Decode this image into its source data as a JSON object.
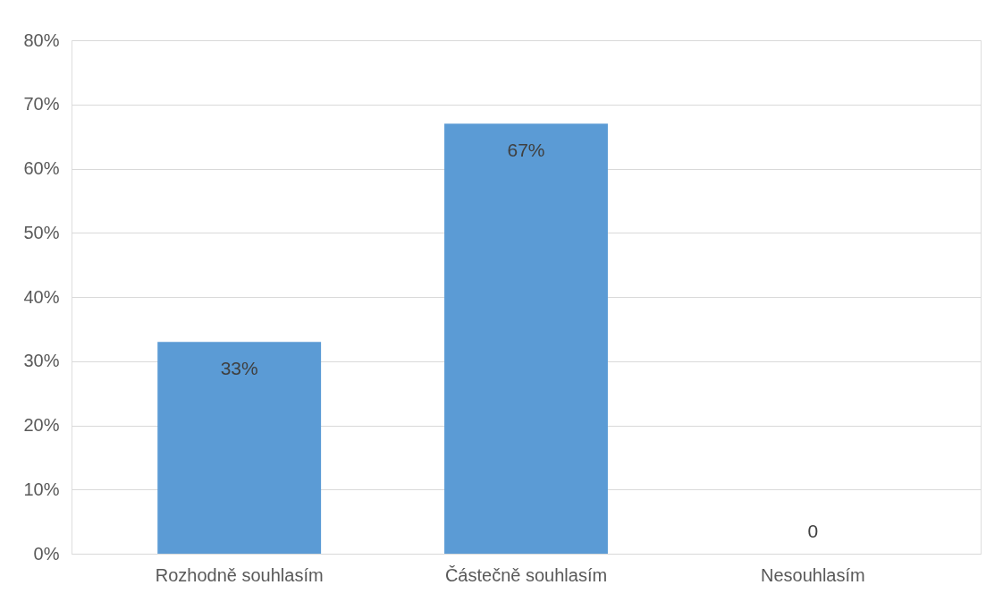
{
  "chart_data": {
    "type": "bar",
    "categories": [
      "Rozhodně souhlasím",
      "Částečně souhlasím",
      "Nesouhlasím"
    ],
    "values": [
      33,
      67,
      0
    ],
    "value_labels": [
      "33%",
      "67%",
      "0"
    ],
    "color": "#5b9bd5",
    "ylim": [
      0,
      80
    ],
    "yticks": [
      {
        "value": 0,
        "label": "0%"
      },
      {
        "value": 10,
        "label": "10%"
      },
      {
        "value": 20,
        "label": "20%"
      },
      {
        "value": 30,
        "label": "30%"
      },
      {
        "value": 40,
        "label": "40%"
      },
      {
        "value": 50,
        "label": "50%"
      },
      {
        "value": 60,
        "label": "60%"
      },
      {
        "value": 70,
        "label": "70%"
      },
      {
        "value": 80,
        "label": "80%"
      }
    ],
    "grid": "y"
  }
}
